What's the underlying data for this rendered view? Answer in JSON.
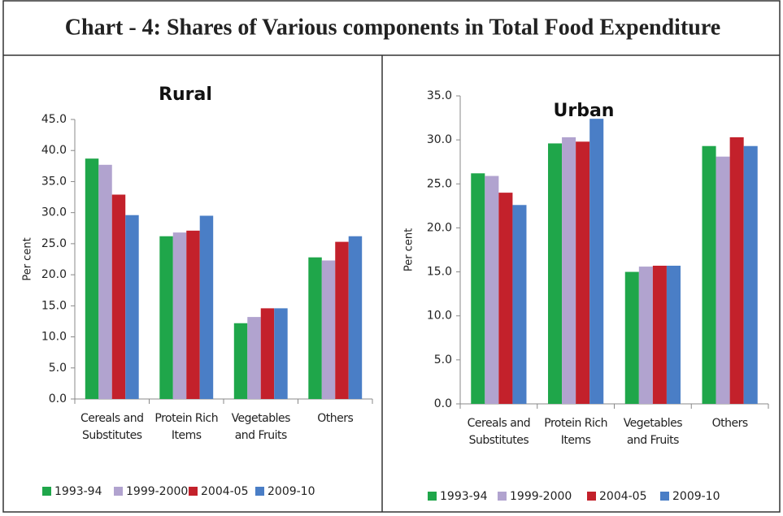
{
  "page_title": "Chart - 4: Shares of Various components in Total Food Expenditure",
  "chart_data": [
    {
      "type": "bar",
      "title": "Rural",
      "y_label": "Per cent",
      "categories": [
        "Cereals and Substitutes",
        "Protein Rich Items",
        "Vegetables and Fruits",
        "Others"
      ],
      "series": [
        {
          "name": "1993-94",
          "color": "#1fa64a",
          "values": [
            38.7,
            26.2,
            12.2,
            22.8
          ]
        },
        {
          "name": "1999-2000",
          "color": "#b1a3cf",
          "values": [
            37.7,
            26.8,
            13.2,
            22.3
          ]
        },
        {
          "name": "2004-05",
          "color": "#c3212b",
          "values": [
            32.9,
            27.1,
            14.6,
            25.3
          ]
        },
        {
          "name": "2009-10",
          "color": "#4a7ec6",
          "values": [
            29.6,
            29.5,
            14.6,
            26.2
          ]
        }
      ],
      "ylim": [
        0,
        45
      ],
      "yticks": [
        {
          "value": 0,
          "label": "0.0"
        },
        {
          "value": 5,
          "label": "5.0"
        },
        {
          "value": 10,
          "label": "10.0"
        },
        {
          "value": 15,
          "label": "15.0"
        },
        {
          "value": 20,
          "label": "20.0"
        },
        {
          "value": 25,
          "label": "25.0"
        },
        {
          "value": 30,
          "label": "30.0"
        },
        {
          "value": 35,
          "label": "35.0"
        },
        {
          "value": 40,
          "label": "40.0"
        },
        {
          "value": 45,
          "label": "45.0"
        }
      ]
    },
    {
      "type": "bar",
      "title": "Urban",
      "y_label": "Per cent",
      "categories": [
        "Cereals and Substitutes",
        "Protein Rich Items",
        "Vegetables and Fruits",
        "Others"
      ],
      "series": [
        {
          "name": "1993-94",
          "color": "#1fa64a",
          "values": [
            26.2,
            29.6,
            15.0,
            29.3
          ]
        },
        {
          "name": "1999-2000",
          "color": "#b1a3cf",
          "values": [
            25.9,
            30.3,
            15.6,
            28.1
          ]
        },
        {
          "name": "2004-05",
          "color": "#c3212b",
          "values": [
            24.0,
            29.8,
            15.7,
            30.3
          ]
        },
        {
          "name": "2009-10",
          "color": "#4a7ec6",
          "values": [
            22.6,
            32.4,
            15.7,
            29.3
          ]
        }
      ],
      "ylim": [
        0,
        35
      ],
      "yticks": [
        {
          "value": 0,
          "label": "0.0"
        },
        {
          "value": 5,
          "label": "5.0"
        },
        {
          "value": 10,
          "label": "10.0"
        },
        {
          "value": 15,
          "label": "15.0"
        },
        {
          "value": 20,
          "label": "20.0"
        },
        {
          "value": 25,
          "label": "25.0"
        },
        {
          "value": 30,
          "label": "30.0"
        },
        {
          "value": 35,
          "label": "35.0"
        }
      ]
    }
  ]
}
